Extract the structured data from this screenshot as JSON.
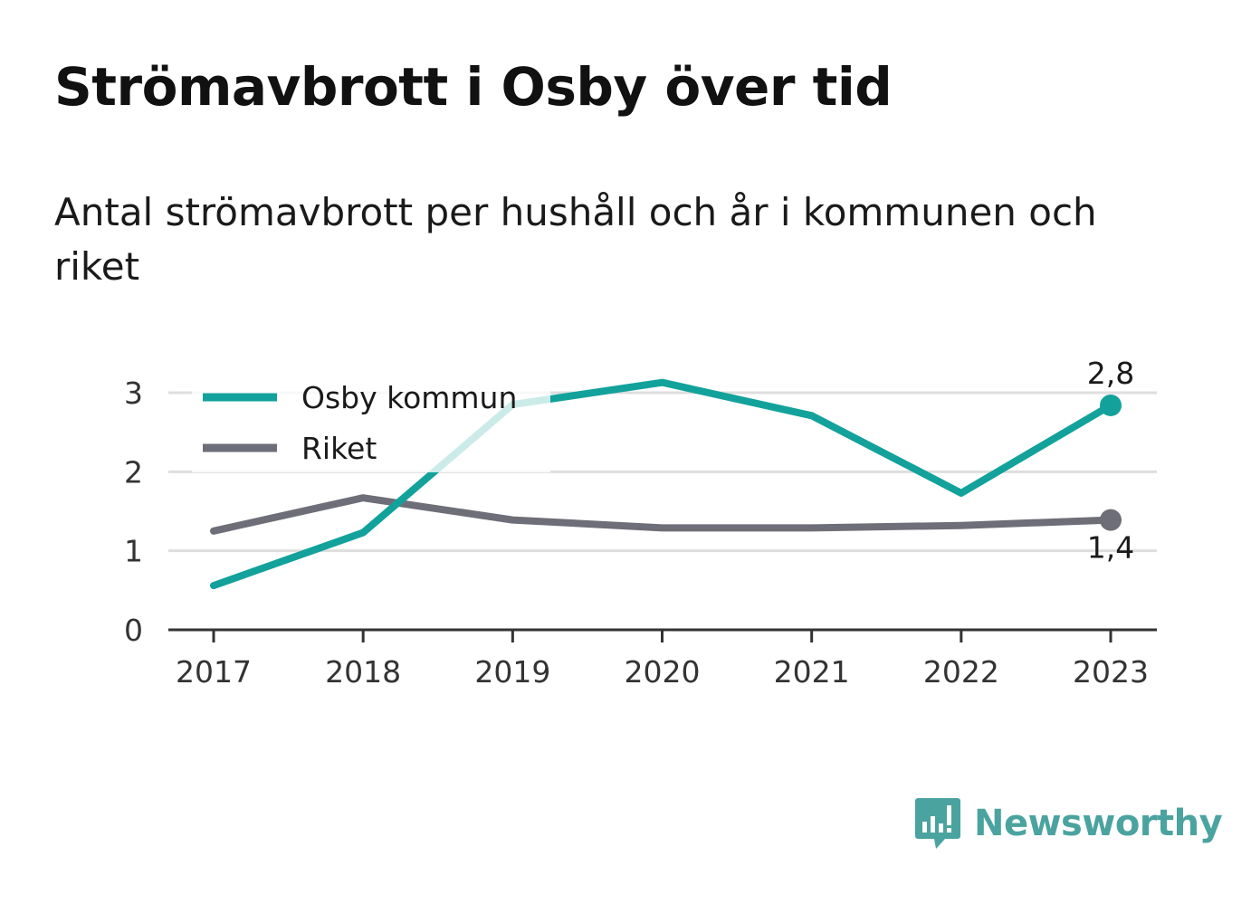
{
  "title": "Strömavbrott i Osby över tid",
  "subtitle": "Antal strömavbrott per hushåll och år i kommunen och riket",
  "brand": "Newsworthy",
  "colors": {
    "osby": "#12a29b",
    "riket": "#6e6e78",
    "grid": "#dedede",
    "axis": "#333333",
    "brand": "#4aa39f"
  },
  "chart_data": {
    "type": "line",
    "x": [
      "2017",
      "2018",
      "2019",
      "2020",
      "2021",
      "2022",
      "2023"
    ],
    "ylim": [
      0,
      3
    ],
    "yticks": [
      "0",
      "1",
      "2",
      "3"
    ],
    "grid": true,
    "legend": "top-left",
    "series": [
      {
        "name": "Osby kommun",
        "values": [
          0.56,
          1.23,
          2.85,
          3.13,
          2.71,
          1.73,
          2.84
        ],
        "end_label": "2,8"
      },
      {
        "name": "Riket",
        "values": [
          1.25,
          1.67,
          1.39,
          1.29,
          1.29,
          1.32,
          1.39
        ],
        "end_label": "1,4"
      }
    ]
  }
}
